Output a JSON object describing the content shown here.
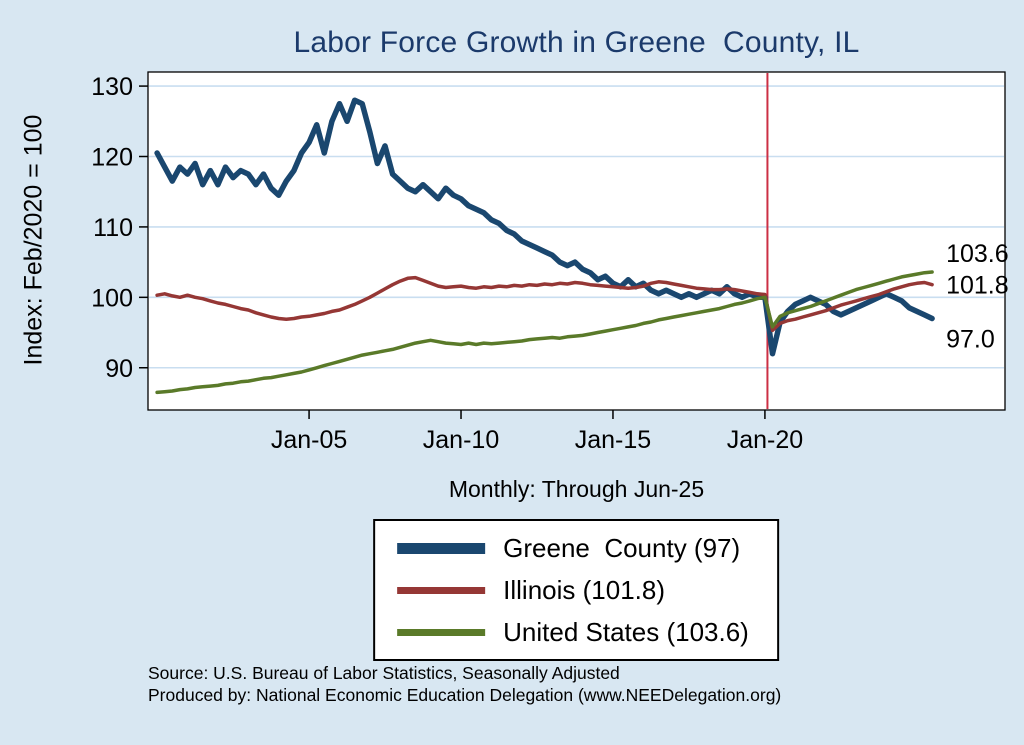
{
  "page": {
    "background": "#d8e7f2",
    "title_color": "#1b3a6b"
  },
  "chart_data": {
    "type": "line",
    "title": "Labor Force Growth in Greene  County, IL",
    "ylabel": "Index: Feb/2020 = 100",
    "xlabel": "Monthly: Through Jun-25",
    "x_start": 2000.0,
    "x_step": 0.25,
    "x_range": [
      1999.7,
      2027.9
    ],
    "y_range": [
      84,
      132
    ],
    "y_ticks": [
      90,
      100,
      110,
      120,
      130
    ],
    "x_ticks": [
      2005,
      2010,
      2015,
      2020
    ],
    "x_tick_labels": [
      "Jan-05",
      "Jan-10",
      "Jan-15",
      "Jan-20"
    ],
    "grid": true,
    "gridline_color": "#c9def0",
    "legend_position": "bottom-center",
    "vline": {
      "x": 2020.083,
      "color": "#cc2f44"
    },
    "series": [
      {
        "name": "Greene County",
        "legend_label": "Greene  County (97)",
        "color": "#1a476f",
        "width": 5.5,
        "end_label": "97.0",
        "end_value": 97.0,
        "label_dy": 20,
        "values": [
          120.5,
          118.5,
          116.5,
          118.5,
          117.5,
          119.0,
          116.0,
          118.0,
          116.0,
          118.5,
          117.0,
          118.0,
          117.5,
          116.0,
          117.5,
          115.5,
          114.5,
          116.5,
          118.0,
          120.5,
          122.0,
          124.5,
          120.5,
          125.0,
          127.5,
          125.0,
          128.0,
          127.5,
          123.5,
          119.0,
          121.5,
          117.5,
          116.5,
          115.5,
          115.0,
          116.0,
          115.0,
          114.0,
          115.5,
          114.5,
          114.0,
          113.0,
          112.5,
          112.0,
          111.0,
          110.5,
          109.5,
          109.0,
          108.0,
          107.5,
          107.0,
          106.5,
          106.0,
          105.0,
          104.5,
          105.0,
          104.0,
          103.5,
          102.5,
          103.0,
          102.0,
          101.5,
          102.5,
          101.5,
          102.0,
          101.0,
          100.5,
          101.0,
          100.5,
          100.0,
          100.5,
          100.0,
          100.5,
          101.0,
          100.5,
          101.5,
          100.5,
          100.0,
          100.5,
          100.0,
          100.0,
          92.0,
          96.5,
          98.0,
          99.0,
          99.5,
          100.0,
          99.5,
          99.0,
          98.0,
          97.5,
          98.0,
          98.5,
          99.0,
          99.5,
          100.0,
          100.5,
          100.0,
          99.5,
          98.5,
          98.0,
          97.5,
          97.0
        ]
      },
      {
        "name": "Illinois",
        "legend_label": "Illinois (101.8)",
        "color": "#953735",
        "width": 3.5,
        "end_label": "101.8",
        "end_value": 101.8,
        "label_dy": 0,
        "values": [
          100.3,
          100.5,
          100.2,
          100.0,
          100.3,
          100.0,
          99.8,
          99.5,
          99.2,
          99.0,
          98.7,
          98.4,
          98.2,
          97.8,
          97.5,
          97.2,
          97.0,
          96.9,
          97.0,
          97.2,
          97.3,
          97.5,
          97.7,
          98.0,
          98.2,
          98.6,
          99.0,
          99.5,
          100.0,
          100.6,
          101.2,
          101.8,
          102.3,
          102.7,
          102.8,
          102.4,
          102.0,
          101.6,
          101.4,
          101.5,
          101.6,
          101.4,
          101.3,
          101.5,
          101.4,
          101.6,
          101.5,
          101.7,
          101.6,
          101.8,
          101.7,
          101.9,
          101.8,
          102.0,
          101.9,
          102.1,
          102.0,
          101.8,
          101.7,
          101.6,
          101.5,
          101.4,
          101.3,
          101.4,
          101.6,
          102.0,
          102.2,
          102.1,
          101.9,
          101.7,
          101.5,
          101.3,
          101.2,
          101.1,
          101.1,
          101.2,
          101.1,
          100.9,
          100.7,
          100.5,
          100.4,
          95.3,
          96.3,
          96.7,
          96.9,
          97.2,
          97.5,
          97.8,
          98.1,
          98.5,
          98.9,
          99.2,
          99.5,
          99.8,
          100.1,
          100.4,
          100.8,
          101.2,
          101.5,
          101.8,
          102.0,
          102.1,
          101.8
        ]
      },
      {
        "name": "United States",
        "legend_label": "United States (103.6)",
        "color": "#5a7a29",
        "width": 3.5,
        "end_label": "103.6",
        "end_value": 103.6,
        "label_dy": -19,
        "values": [
          86.5,
          86.6,
          86.7,
          86.9,
          87.0,
          87.2,
          87.3,
          87.4,
          87.5,
          87.7,
          87.8,
          88.0,
          88.1,
          88.3,
          88.5,
          88.6,
          88.8,
          89.0,
          89.2,
          89.4,
          89.7,
          90.0,
          90.3,
          90.6,
          90.9,
          91.2,
          91.5,
          91.8,
          92.0,
          92.2,
          92.4,
          92.6,
          92.9,
          93.2,
          93.5,
          93.7,
          93.9,
          93.7,
          93.5,
          93.4,
          93.3,
          93.5,
          93.3,
          93.5,
          93.4,
          93.5,
          93.6,
          93.7,
          93.8,
          94.0,
          94.1,
          94.2,
          94.3,
          94.2,
          94.4,
          94.5,
          94.6,
          94.8,
          95.0,
          95.2,
          95.4,
          95.6,
          95.8,
          96.0,
          96.3,
          96.5,
          96.8,
          97.0,
          97.2,
          97.4,
          97.6,
          97.8,
          98.0,
          98.2,
          98.4,
          98.7,
          99.0,
          99.2,
          99.5,
          99.8,
          100.0,
          95.8,
          97.3,
          97.8,
          98.1,
          98.4,
          98.7,
          99.1,
          99.5,
          99.9,
          100.3,
          100.7,
          101.1,
          101.4,
          101.7,
          102.0,
          102.3,
          102.6,
          102.9,
          103.1,
          103.3,
          103.5,
          103.6
        ]
      }
    ]
  },
  "footer": {
    "source_line1": "Source: U.S. Bureau of Labor Statistics, Seasonally Adjusted",
    "source_line2": "Produced by: National Economic Education Delegation (www.NEEDelegation.org)"
  }
}
